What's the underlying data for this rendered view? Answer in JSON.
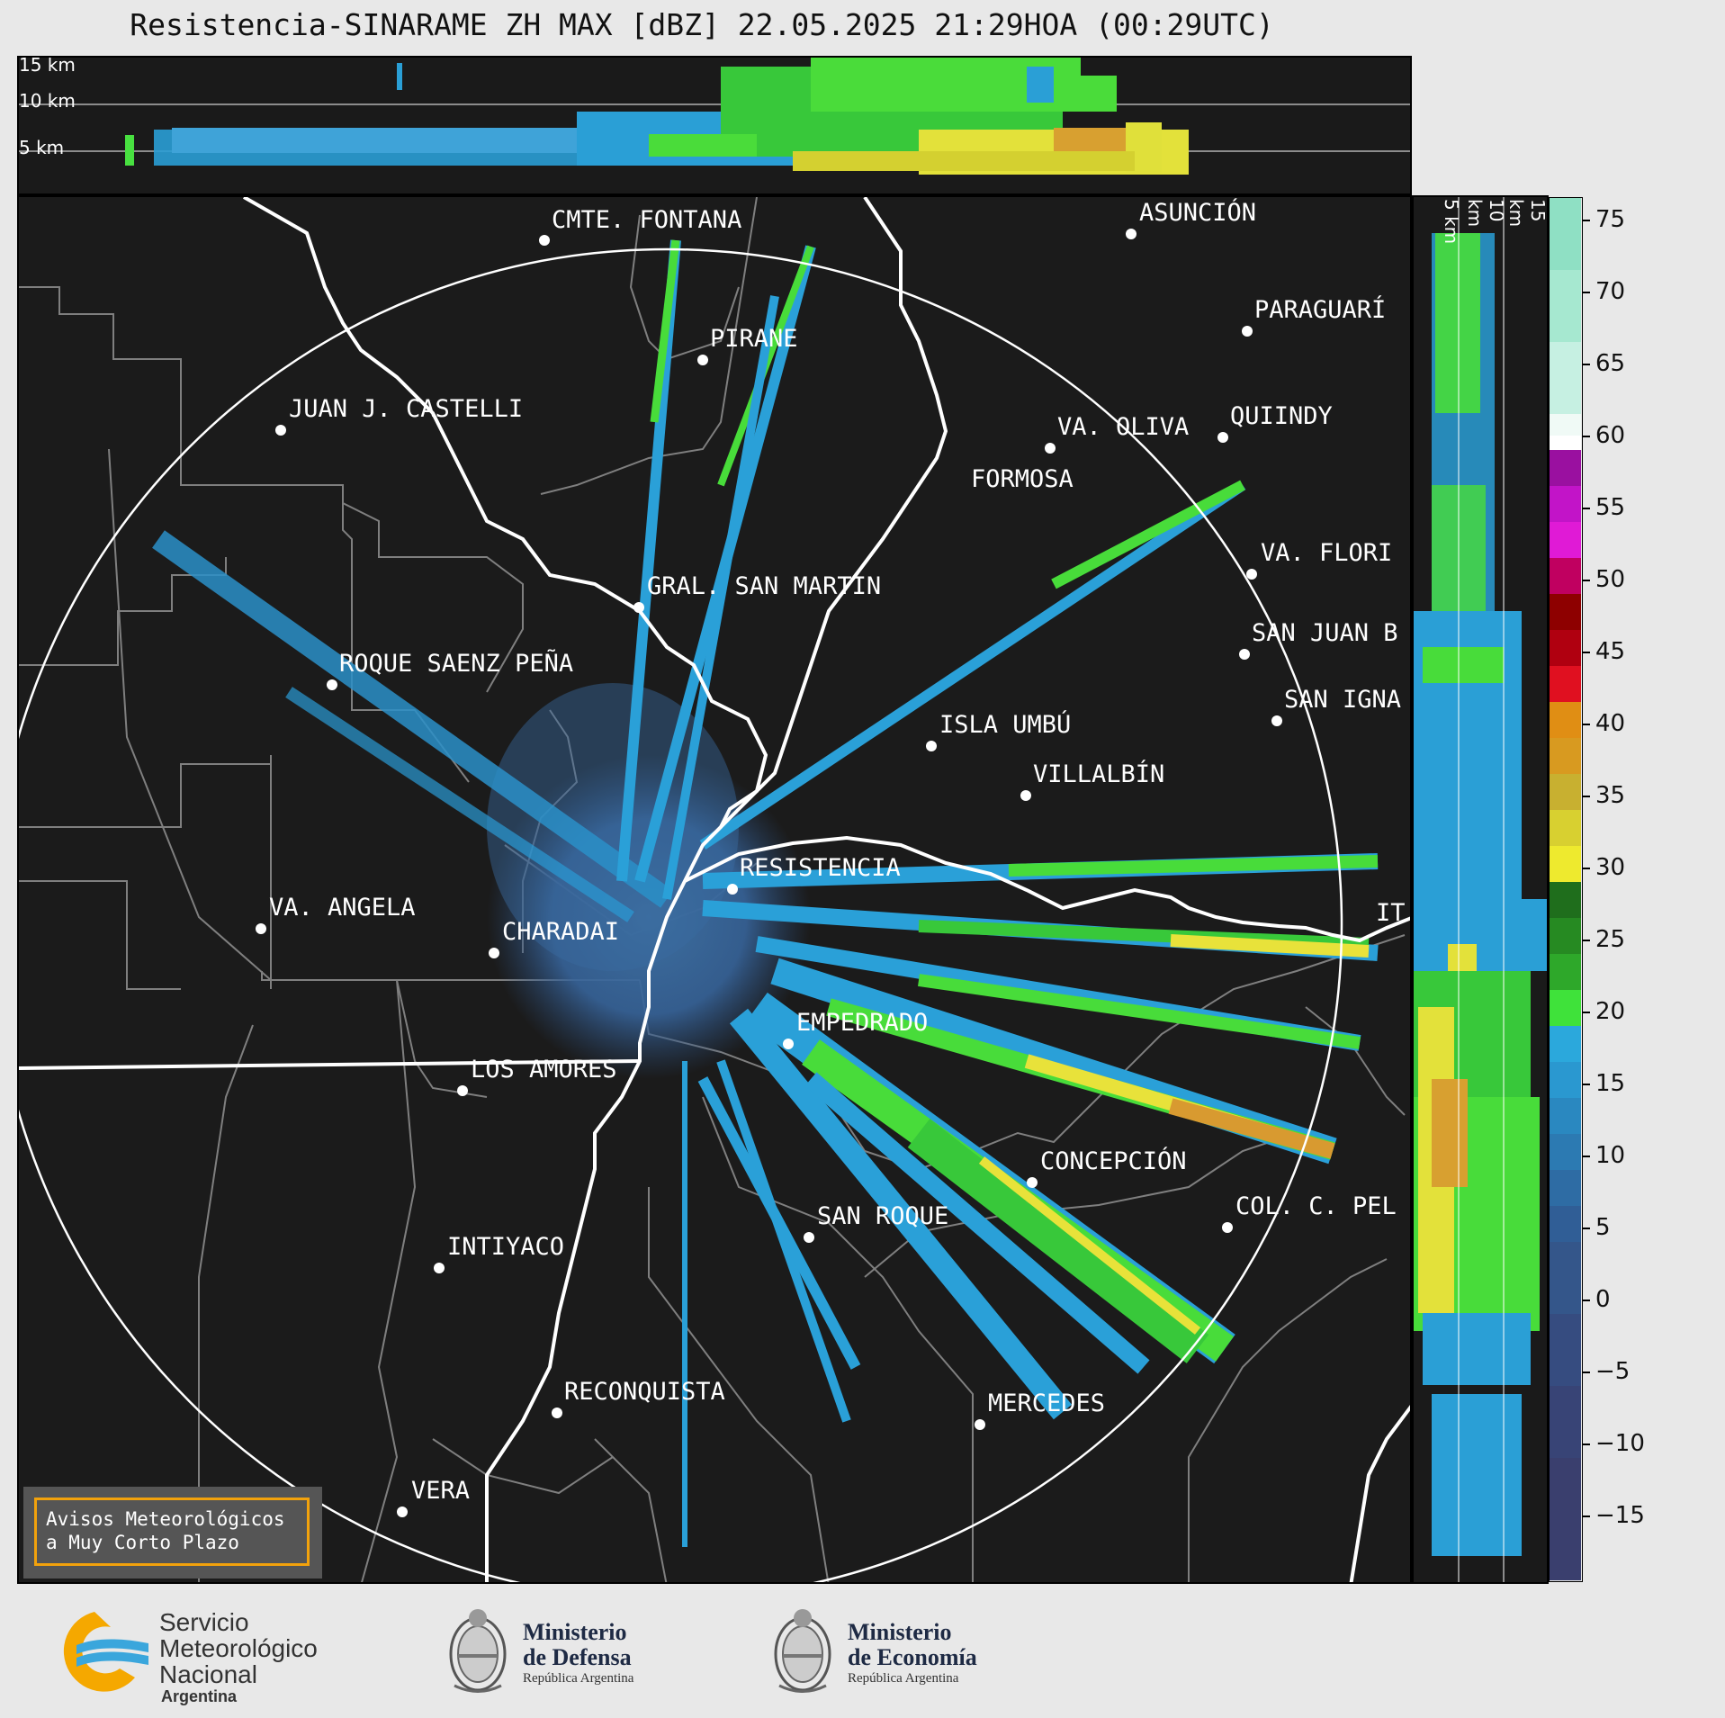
{
  "title": "Resistencia-SINARAME ZH MAX [dBZ] 22.05.2025 21:29HOA (00:29UTC)",
  "top_panel": {
    "height_labels": [
      "15 km",
      "10 km",
      "5 km"
    ]
  },
  "side_panel": {
    "height_labels": [
      "5 km",
      "10 km",
      "15 km"
    ]
  },
  "colorbar": {
    "unit": "dBZ",
    "ticks": [
      "75",
      "70",
      "65",
      "60",
      "55",
      "50",
      "45",
      "40",
      "35",
      "30",
      "25",
      "20",
      "15",
      "10",
      "5",
      "0",
      "−5",
      "−10",
      "−15"
    ],
    "colors": {
      "low": "#3a3f6e",
      "mid_blue": "#2ba8dc",
      "green": "#3fe23a",
      "dark_green": "#1f6e1c",
      "yellow": "#eeea2e",
      "orange": "#e08e14",
      "red": "#c00010",
      "magenta": "#e01ad6",
      "purple": "#9a10a0",
      "white": "#ffffff",
      "teal": "#8fe0c4"
    }
  },
  "cities": [
    {
      "name": "CMTE. FONTANA"
    },
    {
      "name": "ASUNCIÓN"
    },
    {
      "name": "PARAGUARÍ"
    },
    {
      "name": "PIRANE"
    },
    {
      "name": "JUAN J. CASTELLI"
    },
    {
      "name": "VA. OLIVA"
    },
    {
      "name": "QUIINDY"
    },
    {
      "name": "FORMOSA"
    },
    {
      "name": "VA. FLORI"
    },
    {
      "name": "GRAL. SAN MARTIN"
    },
    {
      "name": "SAN JUAN B"
    },
    {
      "name": "ROQUE SAENZ PEÑA"
    },
    {
      "name": "SAN IGNA"
    },
    {
      "name": "ISLA UMBÚ"
    },
    {
      "name": "VILLALBÍN"
    },
    {
      "name": "RESISTENCIA"
    },
    {
      "name": "VA. ANGELA"
    },
    {
      "name": "CHARADAI"
    },
    {
      "name": "IT"
    },
    {
      "name": "EMPEDRADO"
    },
    {
      "name": "LOS AMORES"
    },
    {
      "name": "CONCEPCIÓN"
    },
    {
      "name": "COL. C. PEL"
    },
    {
      "name": "SAN ROQUE"
    },
    {
      "name": "INTIYACO"
    },
    {
      "name": "RECONQUISTA"
    },
    {
      "name": "MERCEDES"
    },
    {
      "name": "VERA"
    }
  ],
  "notice": {
    "line1": "Avisos Meteorológicos",
    "line2": "a Muy Corto Plazo"
  },
  "footer": {
    "smn": {
      "line1": "Servicio",
      "line2": "Meteorológico",
      "line3": "Nacional",
      "line4": "Argentina"
    },
    "defensa": {
      "line1": "Ministerio",
      "line2": "de Defensa",
      "line3": "República Argentina"
    },
    "economia": {
      "line1": "Ministerio",
      "line2": "de Economía",
      "line3": "República Argentina"
    }
  }
}
